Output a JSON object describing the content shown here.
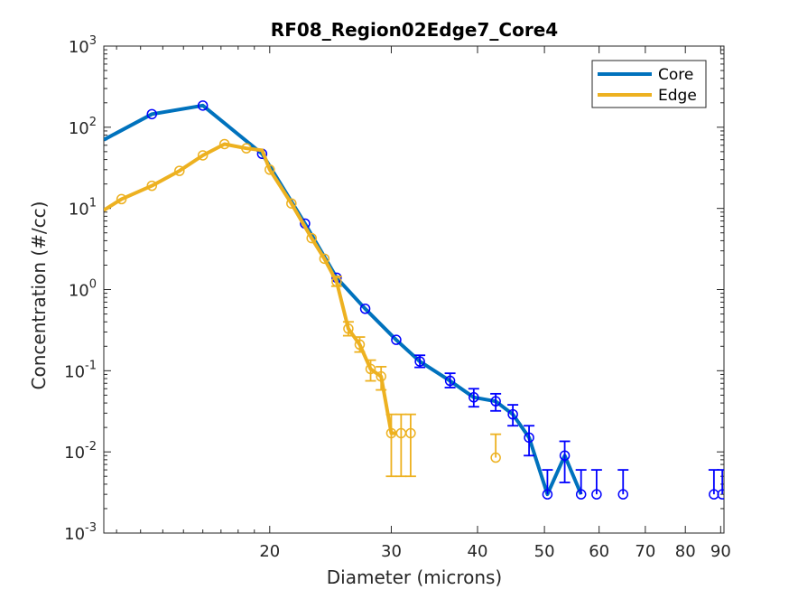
{
  "chart_data": {
    "type": "line",
    "title": "RF08_Region02Edge7_Core4",
    "xlabel": "Diameter (microns)",
    "ylabel": "Concentration (#/cc)",
    "xscale": "log",
    "yscale": "log",
    "xlim": [
      11.5,
      91
    ],
    "ylim": [
      0.001,
      1000
    ],
    "x_ticks": [
      20,
      30,
      40,
      50,
      60,
      70,
      80,
      90
    ],
    "x_tick_labels": [
      "20",
      "30",
      "40",
      "50",
      "60",
      "70",
      "80",
      "90"
    ],
    "y_ticks": [
      {
        "value": 0.001,
        "base": "10",
        "exp": "-3"
      },
      {
        "value": 0.01,
        "base": "10",
        "exp": "-2"
      },
      {
        "value": 0.1,
        "base": "10",
        "exp": "-1"
      },
      {
        "value": 1,
        "base": "10",
        "exp": "0"
      },
      {
        "value": 10,
        "base": "10",
        "exp": "1"
      },
      {
        "value": 100,
        "base": "10",
        "exp": "2"
      },
      {
        "value": 1000,
        "base": "10",
        "exp": "3"
      }
    ],
    "grid": false,
    "legend_position": "top-right",
    "series": [
      {
        "name": "Core",
        "color": "#0072BD",
        "marker_color": "#0000FF",
        "line_x": [
          11.5,
          13.5,
          16.0,
          19.5,
          22.5,
          25.0,
          27.5,
          30.5,
          33.0,
          36.5,
          39.5,
          42.5,
          45.0,
          47.5,
          50.5,
          53.5,
          56.5
        ],
        "line_y": [
          70,
          145,
          185,
          47,
          6.5,
          1.4,
          0.58,
          0.24,
          0.13,
          0.075,
          0.047,
          0.042,
          0.029,
          0.015,
          0.003,
          0.009,
          0.003
        ],
        "points": [
          {
            "x": 13.5,
            "y": 145
          },
          {
            "x": 16.0,
            "y": 185
          },
          {
            "x": 19.5,
            "y": 47
          },
          {
            "x": 22.5,
            "y": 6.5
          },
          {
            "x": 25.0,
            "y": 1.4
          },
          {
            "x": 27.5,
            "y": 0.58
          },
          {
            "x": 30.5,
            "y": 0.24
          },
          {
            "x": 33.0,
            "y": 0.13,
            "err_low": 0.11,
            "err_high": 0.155
          },
          {
            "x": 36.5,
            "y": 0.075,
            "err_low": 0.062,
            "err_high": 0.093
          },
          {
            "x": 39.5,
            "y": 0.047,
            "err_low": 0.036,
            "err_high": 0.06
          },
          {
            "x": 42.5,
            "y": 0.042,
            "err_low": 0.032,
            "err_high": 0.052
          },
          {
            "x": 45.0,
            "y": 0.029,
            "err_low": 0.021,
            "err_high": 0.038
          },
          {
            "x": 47.5,
            "y": 0.015,
            "err_low": 0.009,
            "err_high": 0.021
          },
          {
            "x": 50.5,
            "y": 0.003,
            "err_high": 0.006
          },
          {
            "x": 53.5,
            "y": 0.009,
            "err_low": 0.0042,
            "err_high": 0.0135
          },
          {
            "x": 56.5,
            "y": 0.003,
            "err_high": 0.006
          },
          {
            "x": 59.5,
            "y": 0.003,
            "err_high": 0.006
          },
          {
            "x": 65.0,
            "y": 0.003,
            "err_high": 0.006
          },
          {
            "x": 88.0,
            "y": 0.003,
            "err_high": 0.006
          },
          {
            "x": 90.5,
            "y": 0.003,
            "err_high": 0.006
          }
        ]
      },
      {
        "name": "Edge",
        "color": "#EDB120",
        "marker_color": "#EDB120",
        "line_x": [
          11.5,
          12.2,
          13.5,
          14.8,
          16.0,
          17.2,
          18.5,
          19.5,
          20.0,
          21.5,
          23.0,
          24.0,
          25.0,
          26.0,
          27.0,
          28.0,
          29.0,
          30.0,
          30.5
        ],
        "line_y": [
          9.5,
          13,
          19,
          29,
          45,
          62,
          55,
          52,
          30,
          11.5,
          4.3,
          2.4,
          1.25,
          0.33,
          0.21,
          0.105,
          0.085,
          0.017,
          0.017
        ],
        "points": [
          {
            "x": 12.2,
            "y": 13
          },
          {
            "x": 13.5,
            "y": 19
          },
          {
            "x": 14.8,
            "y": 29
          },
          {
            "x": 16.0,
            "y": 45
          },
          {
            "x": 17.2,
            "y": 62
          },
          {
            "x": 18.5,
            "y": 55
          },
          {
            "x": 20.0,
            "y": 30
          },
          {
            "x": 21.5,
            "y": 11.5
          },
          {
            "x": 23.0,
            "y": 4.3
          },
          {
            "x": 24.0,
            "y": 2.4
          },
          {
            "x": 25.0,
            "y": 1.25,
            "err_low": 1.1,
            "err_high": 1.45
          },
          {
            "x": 26.0,
            "y": 0.33,
            "err_low": 0.27,
            "err_high": 0.4
          },
          {
            "x": 27.0,
            "y": 0.21,
            "err_low": 0.17,
            "err_high": 0.26
          },
          {
            "x": 28.0,
            "y": 0.105,
            "err_low": 0.075,
            "err_high": 0.135
          },
          {
            "x": 29.0,
            "y": 0.085,
            "err_low": 0.058,
            "err_high": 0.112
          },
          {
            "x": 30.0,
            "y": 0.017,
            "err_low": 0.005,
            "err_high": 0.029
          },
          {
            "x": 31.0,
            "y": 0.017,
            "err_low": 0.005,
            "err_high": 0.029
          },
          {
            "x": 32.0,
            "y": 0.017,
            "err_low": 0.005,
            "err_high": 0.029
          },
          {
            "x": 42.5,
            "y": 0.0085,
            "err_high": 0.0165
          }
        ]
      }
    ]
  }
}
